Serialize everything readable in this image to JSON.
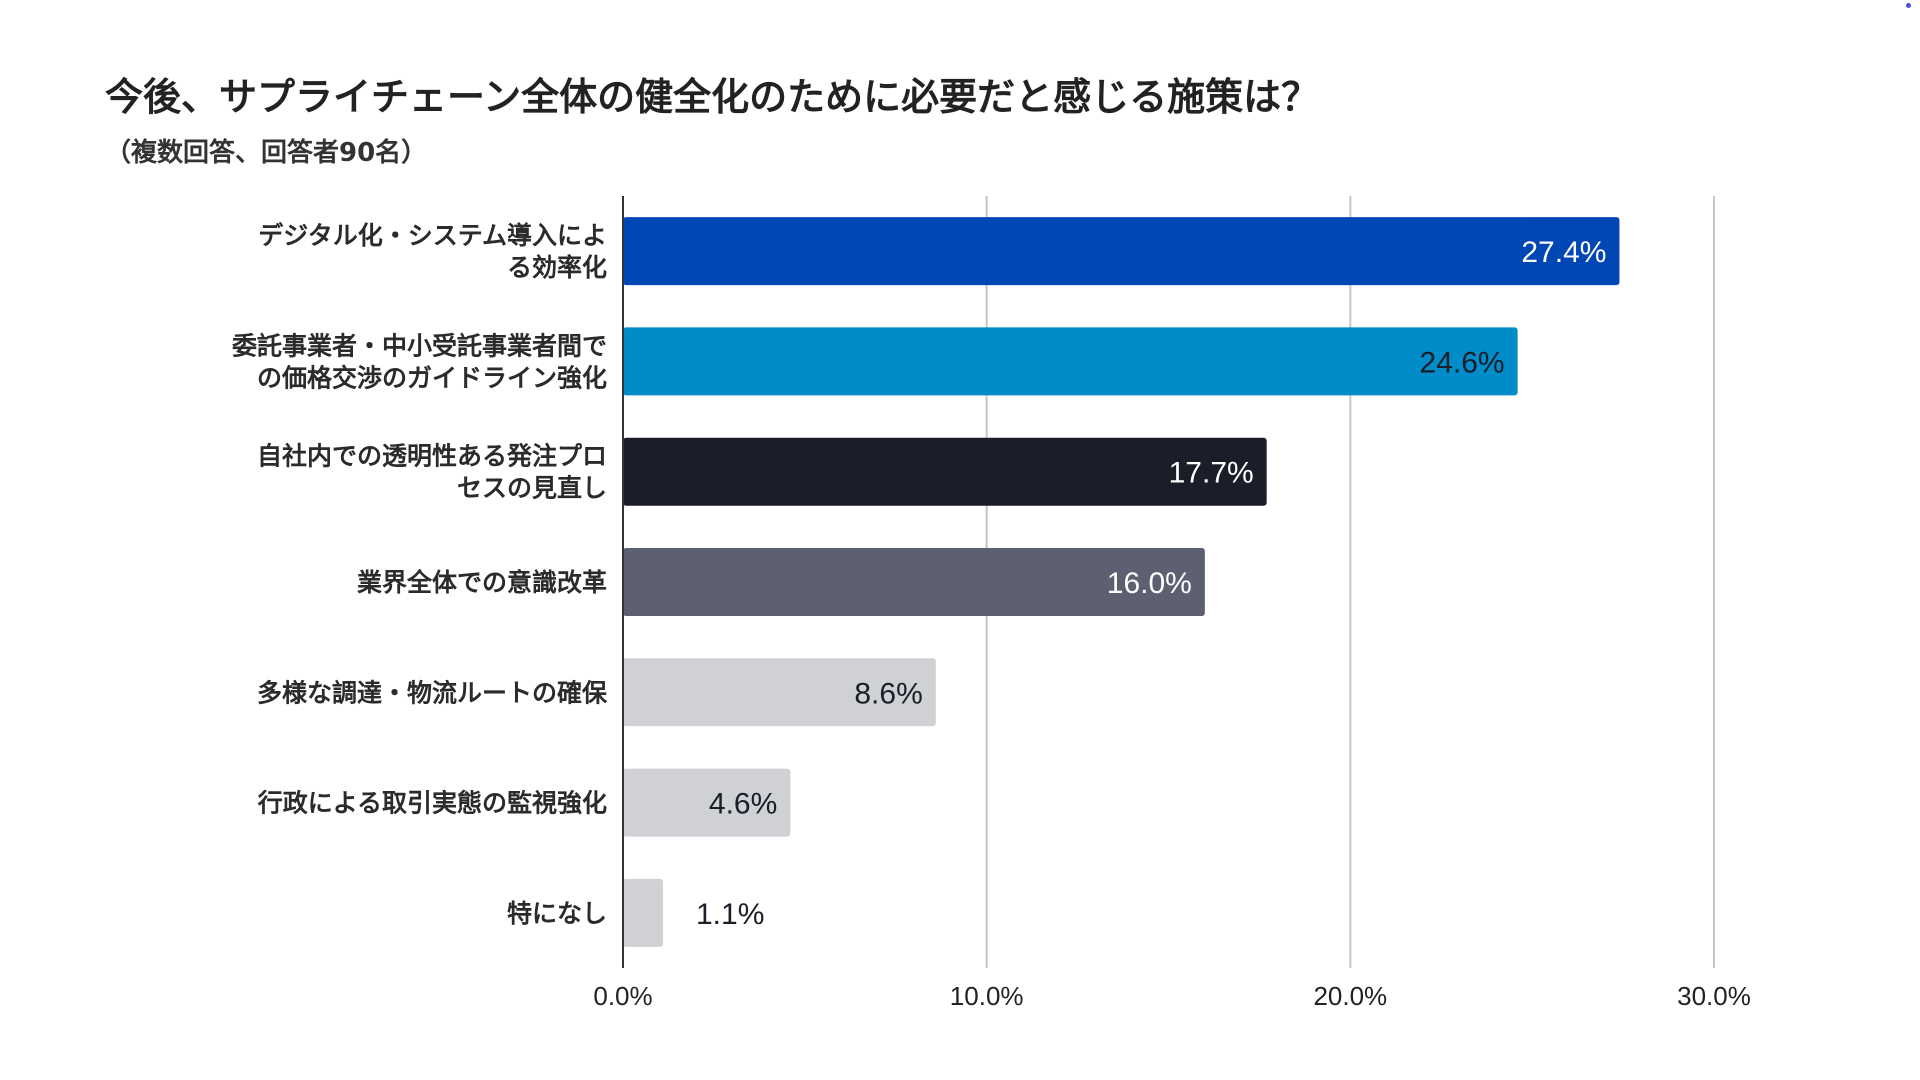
{
  "chart_data": {
    "type": "bar",
    "orientation": "horizontal",
    "title": "今後、サプライチェーン全体の健全化のために必要だと感じる施策は？",
    "subtitle": "（複数回答、回答者90名）",
    "categories": [
      [
        "デジタル化・システム導入によ",
        "る効率化"
      ],
      [
        "委託事業者・中小受託事業者間で",
        "の価格交渉のガイドライン強化"
      ],
      [
        "自社内での透明性ある発注プロ",
        "セスの見直し"
      ],
      [
        "業界全体での意識改革"
      ],
      [
        "多様な調達・物流ルートの確保"
      ],
      [
        "行政による取引実態の監視強化"
      ],
      [
        "特になし"
      ]
    ],
    "values": [
      27.4,
      24.6,
      17.7,
      16.0,
      8.6,
      4.6,
      1.1
    ],
    "value_labels": [
      "27.4%",
      "24.6%",
      "17.7%",
      "16.0%",
      "8.6%",
      "4.6%",
      "1.1%"
    ],
    "bar_colors": [
      "#0046b5",
      "#008bc9",
      "#1b1d29",
      "#5c6070",
      "#d0d1d5",
      "#d0d1d5",
      "#d0d1d5"
    ],
    "label_colors": [
      "#ffffff",
      "#1b1d29",
      "#ffffff",
      "#ffffff",
      "#1b1d29",
      "#1b1d29",
      "#1b1d29"
    ],
    "xlim": [
      0,
      30
    ],
    "xticks": [
      0,
      10,
      20,
      30
    ],
    "xtick_labels": [
      "0.0%",
      "10.0%",
      "20.0%",
      "30.0%"
    ],
    "grid": true,
    "legend": "none"
  }
}
